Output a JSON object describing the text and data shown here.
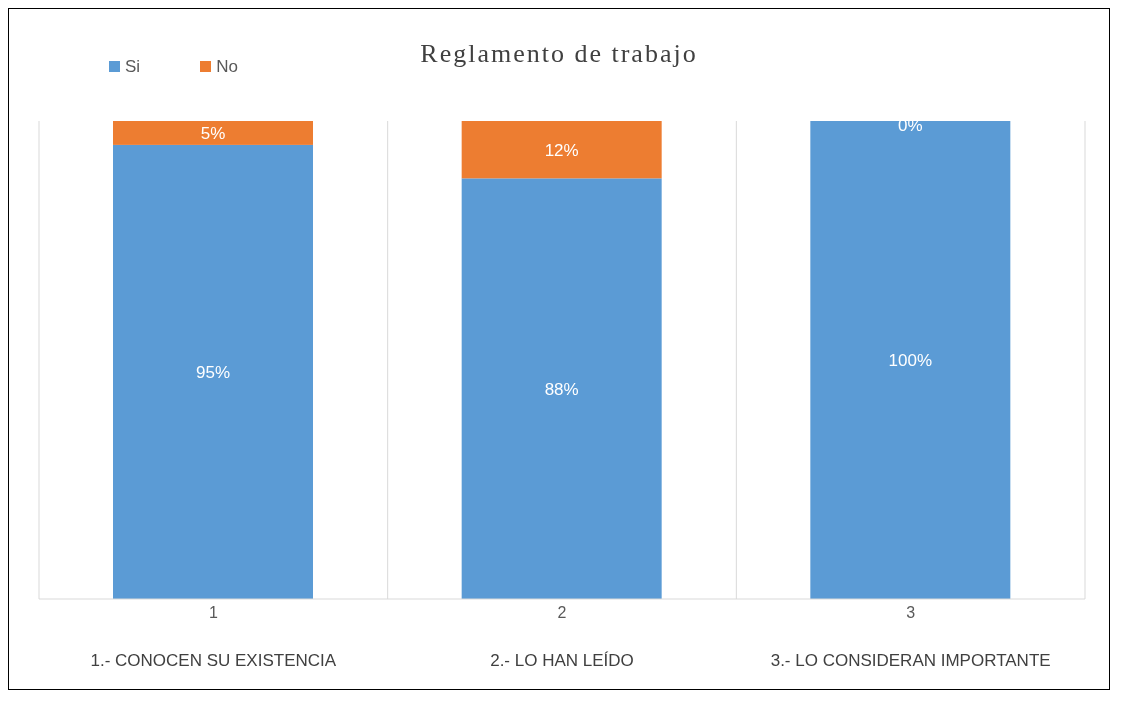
{
  "chart_data": {
    "type": "bar",
    "title": "Reglamento de trabajo",
    "stacked": true,
    "categories": [
      "1",
      "2",
      "3"
    ],
    "series": [
      {
        "name": "Si",
        "color": "#5b9bd5",
        "values": [
          95,
          88,
          100
        ],
        "value_labels": [
          "95%",
          "88%",
          "100%"
        ]
      },
      {
        "name": "No",
        "color": "#ed7d31",
        "values": [
          5,
          12,
          0
        ],
        "value_labels": [
          "5%",
          "12%",
          "0%"
        ]
      }
    ],
    "legend": "top left",
    "grid": "x",
    "annotations": [
      "1.- CONOCEN SU EXISTENCIA",
      "2.- LO HAN LEÍDO",
      "3.- LO CONSIDERAN IMPORTANTE"
    ]
  }
}
